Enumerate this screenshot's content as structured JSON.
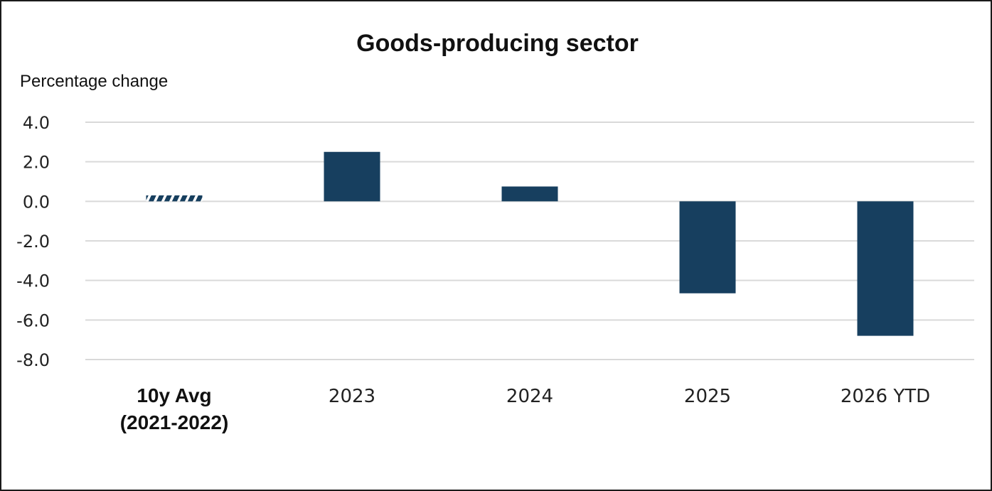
{
  "chart_data": {
    "type": "bar",
    "title": "Goods-producing sector",
    "ylabel": "Percentage change",
    "xlabel": "",
    "ylim": [
      -8.0,
      4.0
    ],
    "yticks": [
      "4.0",
      "2.0",
      "0.0",
      "-2.0",
      "-4.0",
      "-6.0",
      "-8.0"
    ],
    "categories": [
      {
        "lines": [
          "10y Avg",
          "(2021-2022)"
        ],
        "bold": true,
        "hatched": true
      },
      {
        "lines": [
          "2023"
        ],
        "bold": false,
        "hatched": false
      },
      {
        "lines": [
          "2024"
        ],
        "bold": false,
        "hatched": false
      },
      {
        "lines": [
          "2025"
        ],
        "bold": false,
        "hatched": false
      },
      {
        "lines": [
          "2026 YTD"
        ],
        "bold": false,
        "hatched": false
      }
    ],
    "values": [
      0.3,
      2.5,
      0.75,
      -4.65,
      -6.8
    ],
    "grid": true,
    "legend": "none",
    "bar_color": "#173f5f",
    "grid_color": "#d9d9d9"
  }
}
